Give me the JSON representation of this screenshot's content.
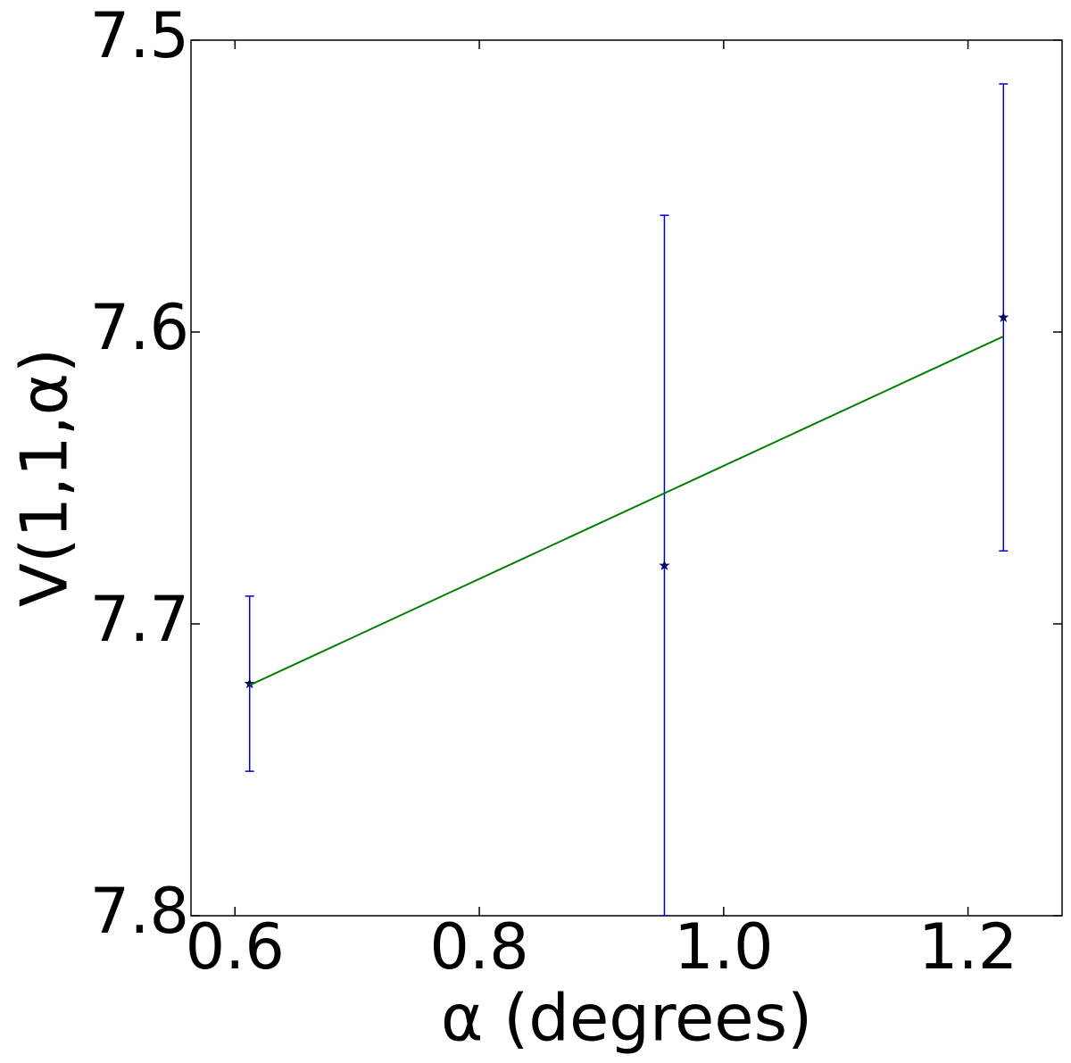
{
  "chart_data": {
    "type": "errorbar",
    "xlabel": "α (degrees)",
    "ylabel": "V(1,1,α)",
    "xlim": [
      0.564,
      1.277
    ],
    "ylim": [
      7.8,
      7.5
    ],
    "xticks": [
      0.6,
      0.8,
      {
        "value": 1.0,
        "label": "1.0"
      },
      1.2
    ],
    "yticks": [
      7.5,
      7.6,
      7.7,
      7.8
    ],
    "series": [
      {
        "kind": "errorbar",
        "color": "#0000cc",
        "marker_color": "#000066",
        "x": [
          0.612,
          0.9515,
          1.229
        ],
        "values": [
          7.7205,
          7.68,
          7.595
        ],
        "errors": [
          0.03,
          0.12,
          0.08
        ]
      },
      {
        "kind": "line",
        "color": "#008000",
        "x": [
          0.612,
          1.229
        ],
        "values": [
          7.721,
          7.6015
        ]
      }
    ]
  }
}
